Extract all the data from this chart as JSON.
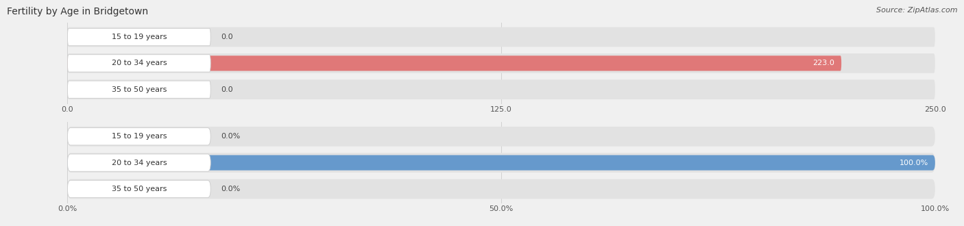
{
  "title": "Fertility by Age in Bridgetown",
  "source": "Source: ZipAtlas.com",
  "top_chart": {
    "categories": [
      "15 to 19 years",
      "20 to 34 years",
      "35 to 50 years"
    ],
    "values": [
      0.0,
      223.0,
      0.0
    ],
    "bar_color": "#e07878",
    "xlim": [
      0,
      250.0
    ],
    "xticks": [
      0.0,
      125.0,
      250.0
    ],
    "bar_bg_color": "#e2e2e2"
  },
  "bottom_chart": {
    "categories": [
      "15 to 19 years",
      "20 to 34 years",
      "35 to 50 years"
    ],
    "values": [
      0.0,
      100.0,
      0.0
    ],
    "bar_color": "#6699cc",
    "xlim": [
      0,
      100.0
    ],
    "xticks": [
      0.0,
      50.0,
      100.0
    ],
    "bar_bg_color": "#e2e2e2"
  },
  "bg_color": "#f0f0f0",
  "bar_row_bg": "#f0f0f0",
  "title_fontsize": 10,
  "label_fontsize": 8,
  "value_fontsize": 8,
  "tick_fontsize": 8,
  "source_fontsize": 8
}
